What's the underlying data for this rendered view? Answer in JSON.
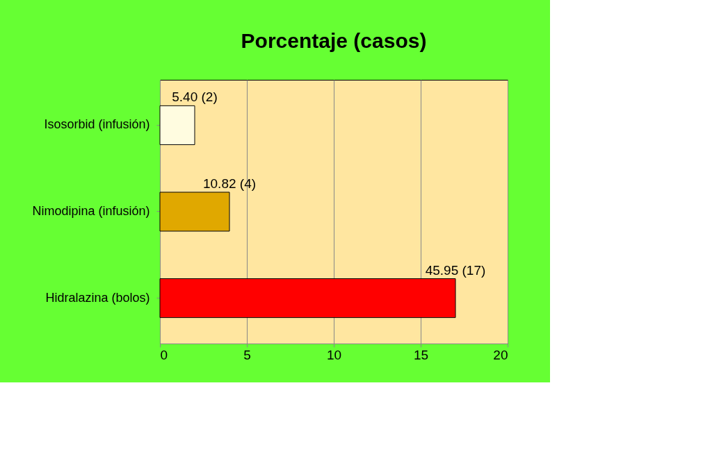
{
  "chart_data": {
    "type": "bar",
    "orientation": "horizontal",
    "title": "Porcentaje (casos)",
    "categories": [
      "Isosorbid (infusión)",
      "Nimodipina (infusión)",
      "Hidralazina (bolos)"
    ],
    "values": [
      2,
      4,
      17
    ],
    "colors": [
      "#fffce0",
      "#e0a800",
      "#ff0000"
    ],
    "value_labels": [
      "5.40 (2)",
      "10.82 (4)",
      "45.95 (17)"
    ],
    "xlim": [
      0,
      20
    ],
    "xticks": [
      0,
      5,
      10,
      15,
      20
    ],
    "grid": "x"
  }
}
